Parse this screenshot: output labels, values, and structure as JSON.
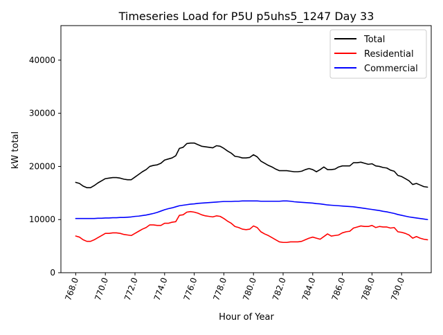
{
  "chart_data": {
    "type": "line",
    "title": "Timeseries Load for P5U p5uhs5_1247  Day 33",
    "xlabel": "Hour of Year",
    "ylabel": "kW total",
    "xlim": [
      767.0,
      792.0
    ],
    "ylim": [
      0,
      46500
    ],
    "xticks": [
      768.0,
      770.0,
      772.0,
      774.0,
      776.0,
      778.0,
      780.0,
      782.0,
      784.0,
      786.0,
      788.0,
      790.0
    ],
    "xtick_labels": [
      "768.0",
      "770.0",
      "772.0",
      "774.0",
      "776.0",
      "778.0",
      "780.0",
      "782.0",
      "784.0",
      "786.0",
      "788.0",
      "790.0"
    ],
    "yticks": [
      0,
      10000,
      20000,
      30000,
      40000
    ],
    "ytick_labels": [
      "0",
      "10000",
      "20000",
      "30000",
      "40000"
    ],
    "legend_position": "top-right",
    "x": [
      768.0,
      768.25,
      768.5,
      768.75,
      769.0,
      769.25,
      769.5,
      769.75,
      770.0,
      770.25,
      770.5,
      770.75,
      771.0,
      771.25,
      771.5,
      771.75,
      772.0,
      772.25,
      772.5,
      772.75,
      773.0,
      773.25,
      773.5,
      773.75,
      774.0,
      774.25,
      774.5,
      774.75,
      775.0,
      775.25,
      775.5,
      775.75,
      776.0,
      776.25,
      776.5,
      776.75,
      777.0,
      777.25,
      777.5,
      777.75,
      778.0,
      778.25,
      778.5,
      778.75,
      779.0,
      779.25,
      779.5,
      779.75,
      780.0,
      780.25,
      780.5,
      780.75,
      781.0,
      781.25,
      781.5,
      781.75,
      782.0,
      782.25,
      782.5,
      782.75,
      783.0,
      783.25,
      783.5,
      783.75,
      784.0,
      784.25,
      784.5,
      784.75,
      785.0,
      785.25,
      785.5,
      785.75,
      786.0,
      786.25,
      786.5,
      786.75,
      787.0,
      787.25,
      787.5,
      787.75,
      788.0,
      788.25,
      788.5,
      788.75,
      789.0,
      789.25,
      789.5,
      789.75,
      790.0,
      790.25,
      790.5,
      790.75,
      791.0,
      791.25,
      791.5,
      791.75
    ],
    "series": [
      {
        "name": "Total",
        "color": "#000000",
        "values": [
          17000,
          16800,
          16300,
          16000,
          16000,
          16400,
          16900,
          17300,
          17700,
          17800,
          17900,
          17900,
          17800,
          17600,
          17500,
          17500,
          18000,
          18500,
          19000,
          19400,
          20000,
          20200,
          20300,
          20600,
          21200,
          21400,
          21600,
          22000,
          23400,
          23600,
          24300,
          24400,
          24400,
          24100,
          23800,
          23700,
          23600,
          23500,
          23900,
          23800,
          23400,
          22900,
          22500,
          21900,
          21800,
          21600,
          21600,
          21700,
          22200,
          21800,
          21000,
          20600,
          20200,
          19900,
          19500,
          19200,
          19200,
          19200,
          19100,
          19000,
          19000,
          19100,
          19400,
          19600,
          19400,
          19000,
          19400,
          19900,
          19400,
          19400,
          19500,
          19900,
          20100,
          20100,
          20100,
          20700,
          20700,
          20800,
          20600,
          20400,
          20500,
          20100,
          20000,
          19800,
          19700,
          19300,
          19100,
          18300,
          18100,
          17700,
          17300,
          16600,
          16800,
          16500,
          16200,
          16100
        ]
      },
      {
        "name": "Residential",
        "color": "#ff0000",
        "values": [
          6900,
          6700,
          6200,
          5900,
          5900,
          6200,
          6600,
          7000,
          7400,
          7400,
          7500,
          7500,
          7400,
          7200,
          7100,
          7000,
          7400,
          7800,
          8200,
          8500,
          9000,
          9000,
          8900,
          8900,
          9300,
          9300,
          9500,
          9600,
          10800,
          10900,
          11400,
          11500,
          11400,
          11200,
          10900,
          10700,
          10600,
          10500,
          10700,
          10600,
          10200,
          9700,
          9300,
          8700,
          8500,
          8200,
          8100,
          8200,
          8800,
          8500,
          7700,
          7300,
          7000,
          6600,
          6200,
          5800,
          5700,
          5700,
          5800,
          5800,
          5800,
          5900,
          6200,
          6500,
          6700,
          6500,
          6300,
          6800,
          7300,
          6900,
          7000,
          7100,
          7500,
          7700,
          7800,
          8400,
          8600,
          8800,
          8700,
          8700,
          8900,
          8500,
          8700,
          8600,
          8600,
          8400,
          8500,
          7700,
          7600,
          7400,
          7100,
          6500,
          6800,
          6500,
          6300,
          6200
        ]
      },
      {
        "name": "Commercial",
        "color": "#0000ff",
        "values": [
          10200,
          10200,
          10200,
          10200,
          10200,
          10200,
          10250,
          10250,
          10300,
          10300,
          10350,
          10350,
          10400,
          10400,
          10450,
          10500,
          10600,
          10650,
          10750,
          10850,
          11000,
          11150,
          11350,
          11600,
          11850,
          12050,
          12200,
          12400,
          12600,
          12700,
          12800,
          12900,
          12950,
          13050,
          13100,
          13150,
          13200,
          13250,
          13300,
          13350,
          13400,
          13400,
          13400,
          13450,
          13450,
          13500,
          13500,
          13500,
          13500,
          13500,
          13450,
          13450,
          13450,
          13450,
          13450,
          13450,
          13500,
          13500,
          13450,
          13350,
          13300,
          13250,
          13200,
          13150,
          13100,
          13000,
          12950,
          12850,
          12750,
          12700,
          12650,
          12600,
          12550,
          12500,
          12450,
          12400,
          12300,
          12200,
          12100,
          12000,
          11900,
          11800,
          11700,
          11550,
          11450,
          11300,
          11150,
          10950,
          10800,
          10650,
          10500,
          10400,
          10300,
          10200,
          10100,
          10000
        ]
      }
    ]
  }
}
